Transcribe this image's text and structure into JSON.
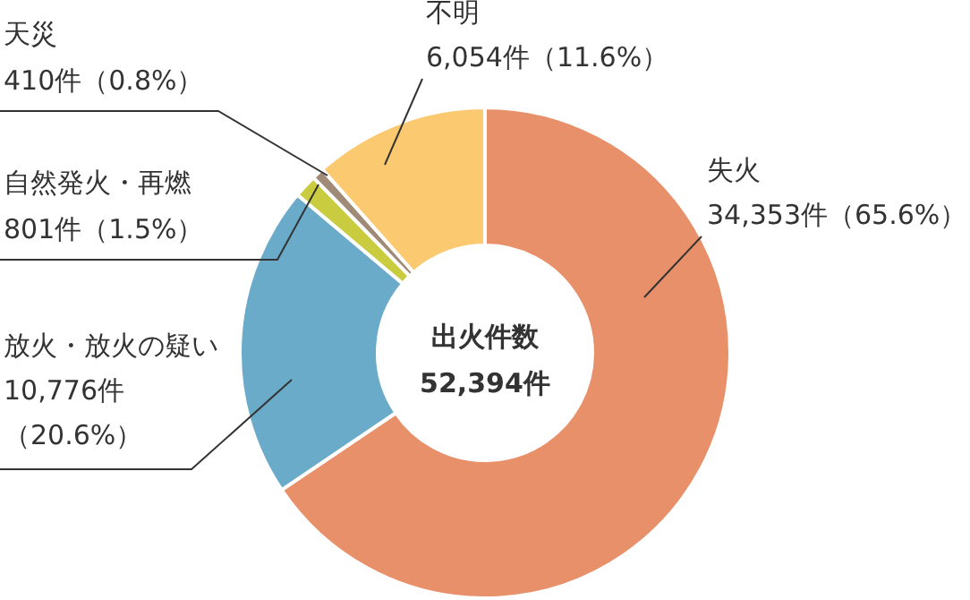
{
  "chart_data": {
    "type": "donut",
    "title": "出火件数",
    "subtitle": "52,394件",
    "categories": [
      "失火",
      "放火・放火の疑い",
      "自然発火・再燃",
      "天災",
      "不明"
    ],
    "values": [
      34353,
      10776,
      801,
      410,
      6054
    ],
    "colors": [
      "#e8906a",
      "#6aabc9",
      "#c8cc3e",
      "#a08a78",
      "#fbc96f"
    ],
    "value_labels": [
      "34,353件（65.6%）",
      "10,776件（20.6%）",
      "801件（1.5%）",
      "410件（0.8%）",
      "6,054件（11.6%）"
    ]
  }
}
